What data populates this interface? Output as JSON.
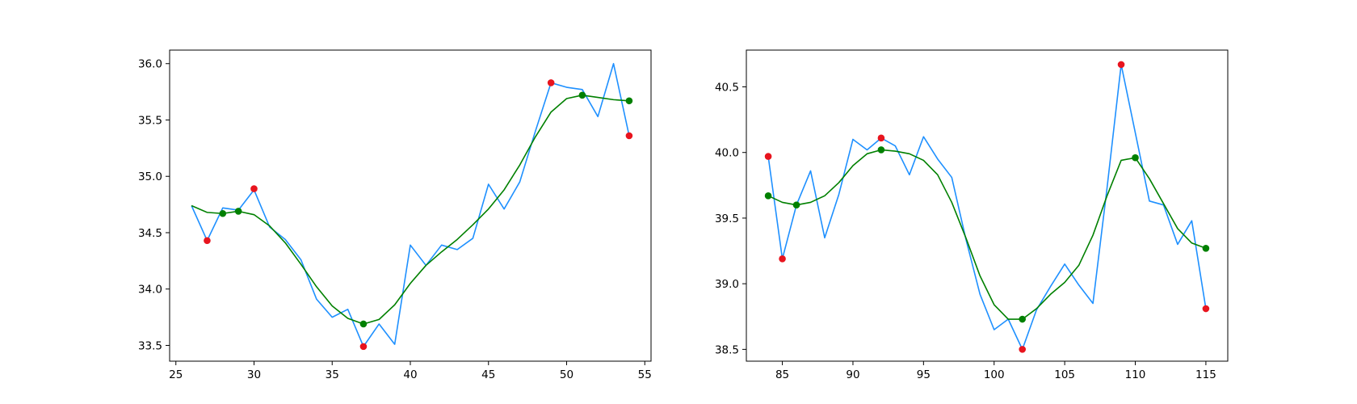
{
  "chart_data": [
    {
      "type": "line",
      "title": "",
      "xlabel": "",
      "ylabel": "",
      "xlim": [
        24.6,
        55.4
      ],
      "ylim": [
        33.36,
        36.12
      ],
      "xticks": [
        25,
        30,
        35,
        40,
        45,
        50,
        55
      ],
      "yticks": [
        33.5,
        34.0,
        34.5,
        35.0,
        35.5,
        36.0
      ],
      "xtick_labels": [
        "25",
        "30",
        "35",
        "40",
        "45",
        "50",
        "55"
      ],
      "ytick_labels": [
        "33.5",
        "34.0",
        "34.5",
        "35.0",
        "35.5",
        "36.0"
      ],
      "grid": false,
      "legend": "none",
      "series": [
        {
          "kind": "line",
          "color": "#1e90ff",
          "x": [
            26,
            27,
            28,
            29,
            30,
            31,
            32,
            33,
            34,
            35,
            36,
            37,
            38,
            39,
            40,
            41,
            42,
            43,
            44,
            45,
            46,
            47,
            48,
            49,
            50,
            51,
            52,
            53,
            54
          ],
          "y": [
            34.74,
            34.43,
            34.72,
            34.7,
            34.88,
            34.55,
            34.44,
            34.26,
            33.91,
            33.75,
            33.82,
            33.49,
            33.69,
            33.51,
            34.39,
            34.21,
            34.39,
            34.35,
            34.45,
            34.93,
            34.71,
            34.95,
            35.4,
            35.83,
            35.79,
            35.77,
            35.53,
            36.0,
            35.36
          ]
        },
        {
          "kind": "line",
          "color": "#008000",
          "x": [
            26,
            27,
            28,
            29,
            30,
            31,
            32,
            33,
            34,
            35,
            36,
            37,
            38,
            39,
            40,
            41,
            42,
            43,
            44,
            45,
            46,
            47,
            48,
            49,
            50,
            51,
            52,
            53,
            54
          ],
          "y": [
            34.74,
            34.68,
            34.67,
            34.69,
            34.66,
            34.56,
            34.41,
            34.22,
            34.02,
            33.85,
            33.74,
            33.69,
            33.73,
            33.86,
            34.05,
            34.21,
            34.33,
            34.44,
            34.57,
            34.71,
            34.88,
            35.1,
            35.35,
            35.57,
            35.69,
            35.72,
            35.7,
            35.68,
            35.67
          ]
        },
        {
          "kind": "scatter",
          "color": "#e8141e",
          "x": [
            27,
            30,
            37,
            49,
            54
          ],
          "y": [
            34.43,
            34.89,
            33.49,
            35.83,
            35.36
          ]
        },
        {
          "kind": "scatter",
          "color": "#008000",
          "x": [
            28,
            29,
            37,
            51,
            54
          ],
          "y": [
            34.67,
            34.69,
            33.69,
            35.72,
            35.67
          ]
        }
      ]
    },
    {
      "type": "line",
      "title": "",
      "xlabel": "",
      "ylabel": "",
      "xlim": [
        82.45,
        116.55
      ],
      "ylim": [
        38.41,
        40.78
      ],
      "xticks": [
        85,
        90,
        95,
        100,
        105,
        110,
        115
      ],
      "yticks": [
        38.5,
        39.0,
        39.5,
        40.0,
        40.5
      ],
      "xtick_labels": [
        "85",
        "90",
        "95",
        "100",
        "105",
        "110",
        "115"
      ],
      "ytick_labels": [
        "38.5",
        "39.0",
        "39.5",
        "40.0",
        "40.5"
      ],
      "grid": false,
      "legend": "none",
      "series": [
        {
          "kind": "line",
          "color": "#1e90ff",
          "x": [
            84,
            85,
            86,
            87,
            88,
            89,
            90,
            91,
            92,
            93,
            94,
            95,
            96,
            97,
            98,
            99,
            100,
            101,
            102,
            103,
            104,
            105,
            106,
            107,
            108,
            109,
            110,
            111,
            112,
            113,
            114,
            115
          ],
          "y": [
            39.97,
            39.19,
            39.6,
            39.86,
            39.35,
            39.68,
            40.1,
            40.02,
            40.11,
            40.05,
            39.83,
            40.12,
            39.95,
            39.81,
            39.34,
            38.92,
            38.65,
            38.73,
            38.5,
            38.8,
            38.98,
            39.15,
            38.99,
            38.85,
            39.73,
            40.67,
            40.15,
            39.63,
            39.6,
            39.3,
            39.48,
            38.81
          ]
        },
        {
          "kind": "line",
          "color": "#008000",
          "x": [
            84,
            85,
            86,
            87,
            88,
            89,
            90,
            91,
            92,
            93,
            94,
            95,
            96,
            97,
            98,
            99,
            100,
            101,
            102,
            103,
            104,
            105,
            106,
            107,
            108,
            109,
            110,
            111,
            112,
            113,
            114,
            115
          ],
          "y": [
            39.67,
            39.62,
            39.6,
            39.62,
            39.67,
            39.77,
            39.9,
            39.99,
            40.02,
            40.01,
            39.99,
            39.94,
            39.83,
            39.62,
            39.35,
            39.06,
            38.84,
            38.73,
            38.73,
            38.81,
            38.92,
            39.01,
            39.14,
            39.37,
            39.67,
            39.94,
            39.96,
            39.8,
            39.61,
            39.42,
            39.31,
            39.27
          ]
        },
        {
          "kind": "scatter",
          "color": "#e8141e",
          "x": [
            84,
            85,
            92,
            102,
            109,
            115
          ],
          "y": [
            39.97,
            39.19,
            40.11,
            38.5,
            40.67,
            38.81
          ]
        },
        {
          "kind": "scatter",
          "color": "#008000",
          "x": [
            84,
            86,
            92,
            102,
            110,
            115
          ],
          "y": [
            39.67,
            39.6,
            40.02,
            38.73,
            39.96,
            39.27
          ]
        }
      ]
    }
  ]
}
